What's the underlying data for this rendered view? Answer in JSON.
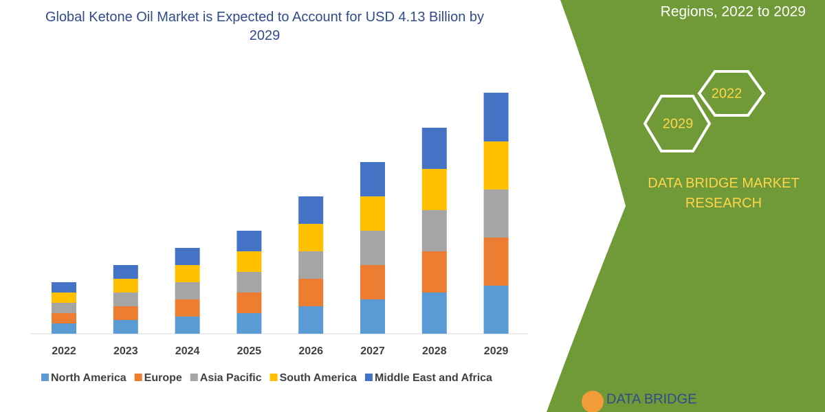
{
  "chart_data": {
    "type": "bar",
    "stacked": true,
    "title": "Global Ketone Oil Market is Expected to Account for USD 4.13 Billion by 2029",
    "categories": [
      "2022",
      "2023",
      "2024",
      "2025",
      "2026",
      "2027",
      "2028",
      "2029"
    ],
    "series": [
      {
        "name": "North America",
        "color": "#5b9bd5",
        "values": [
          15,
          20,
          25,
          30,
          40,
          50,
          60,
          70
        ]
      },
      {
        "name": "Europe",
        "color": "#ed7d31",
        "values": [
          15,
          20,
          25,
          30,
          40,
          50,
          60,
          70
        ]
      },
      {
        "name": "Asia Pacific",
        "color": "#a5a5a5",
        "values": [
          15,
          20,
          25,
          30,
          40,
          50,
          60,
          70
        ]
      },
      {
        "name": "South America",
        "color": "#ffc000",
        "values": [
          15,
          20,
          25,
          30,
          40,
          50,
          60,
          70
        ]
      },
      {
        "name": "Middle East and Africa",
        "color": "#4472c4",
        "values": [
          15,
          20,
          25,
          30,
          40,
          50,
          60,
          71
        ]
      }
    ]
  },
  "side": {
    "heading": "Regions, 2022 to 2029",
    "hexagons": [
      "2022",
      "2029"
    ],
    "brand": "DATA BRIDGE MARKET RESEARCH",
    "logo": "DATA BRIDGE"
  }
}
